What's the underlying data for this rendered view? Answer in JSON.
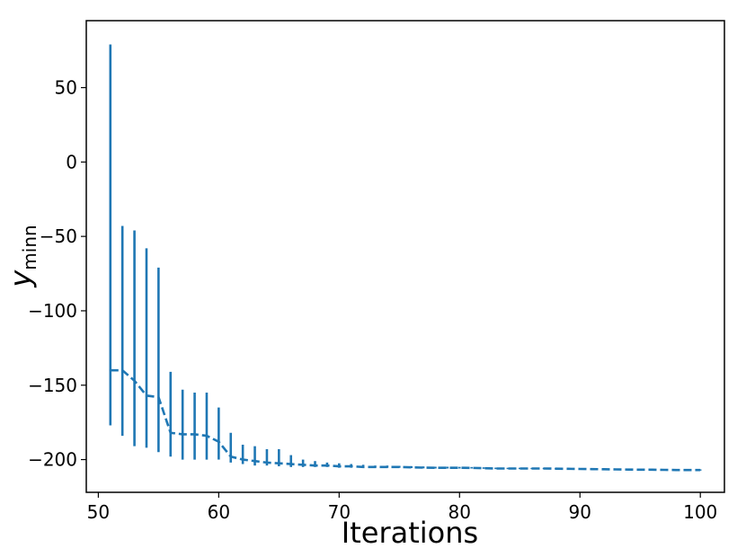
{
  "chart_data": {
    "type": "line",
    "title": "",
    "xlabel": "Iterations",
    "ylabel": {
      "base": "y",
      "subscript": "minn"
    },
    "xlim": [
      49,
      102
    ],
    "ylim": [
      -222,
      95
    ],
    "xticks": [
      50,
      60,
      70,
      80,
      90,
      100
    ],
    "yticks": [
      -200,
      -150,
      -100,
      -50,
      0,
      50
    ],
    "ytick_labels": [
      "−200",
      "−150",
      "−100",
      "−50",
      "0",
      "50"
    ],
    "grid": false,
    "legend": "none",
    "colors": {
      "series": "#1f77b4"
    },
    "series": [
      {
        "line_style": "dashed",
        "error_bars": true,
        "x": [
          51,
          52,
          53,
          54,
          55,
          56,
          57,
          58,
          59,
          60,
          61,
          62,
          63,
          64,
          65,
          66,
          67,
          68,
          69,
          70,
          71,
          72,
          73,
          74,
          75,
          76,
          77,
          78,
          79,
          80,
          81,
          82,
          83,
          84,
          85,
          86,
          87,
          88,
          89,
          90,
          91,
          92,
          93,
          94,
          95,
          96,
          97,
          98,
          99,
          100
        ],
        "y": [
          -140,
          -140,
          -147,
          -157,
          -158,
          -182,
          -183,
          -183,
          -184,
          -188,
          -198,
          -200,
          -201,
          -202,
          -202.5,
          -203,
          -203.5,
          -204,
          -204,
          -204.5,
          -204.5,
          -205,
          -205,
          -205,
          -205,
          -205.2,
          -205.4,
          -205.5,
          -205.5,
          -205.5,
          -205.6,
          -205.8,
          -206,
          -206,
          -206,
          -206,
          -206,
          -206.1,
          -206.2,
          -206.3,
          -206.4,
          -206.5,
          -206.6,
          -206.7,
          -206.8,
          -206.8,
          -206.9,
          -207,
          -207,
          -207
        ],
        "lower": [
          -177,
          -184,
          -191,
          -192,
          -195,
          -198,
          -200,
          -200,
          -200,
          -200,
          -202,
          -203,
          -204,
          -204,
          -204.5,
          -205,
          -205,
          -205,
          -205,
          -205.5,
          -205.5,
          -205.5,
          -205.5,
          -205.5,
          -205.5,
          -205.7,
          -205.9,
          -206,
          -206,
          -206,
          -206,
          -206.2,
          -206.4,
          -206.4,
          -206.4,
          -206.4,
          -206.4,
          -206.5,
          -206.6,
          -206.7,
          -206.8,
          -206.9,
          -207,
          -207.1,
          -207.2,
          -207.2,
          -207.3,
          -207.4,
          -207.4,
          -207.4
        ],
        "upper": [
          79,
          -43,
          -46,
          -58,
          -71,
          -141,
          -153,
          -155,
          -155,
          -165,
          -182,
          -190,
          -191,
          -193,
          -193,
          -197,
          -200,
          -201,
          -202,
          -202.5,
          -203,
          -203.5,
          -204,
          -204,
          -204.2,
          -204.4,
          -204.6,
          -204.8,
          -204.8,
          -204.9,
          -205,
          -205.2,
          -205.4,
          -205.5,
          -205.5,
          -205.6,
          -205.6,
          -205.7,
          -205.8,
          -205.9,
          -206,
          -206.1,
          -206.2,
          -206.3,
          -206.4,
          -206.4,
          -206.5,
          -206.6,
          -206.6,
          -206.6
        ]
      }
    ]
  }
}
